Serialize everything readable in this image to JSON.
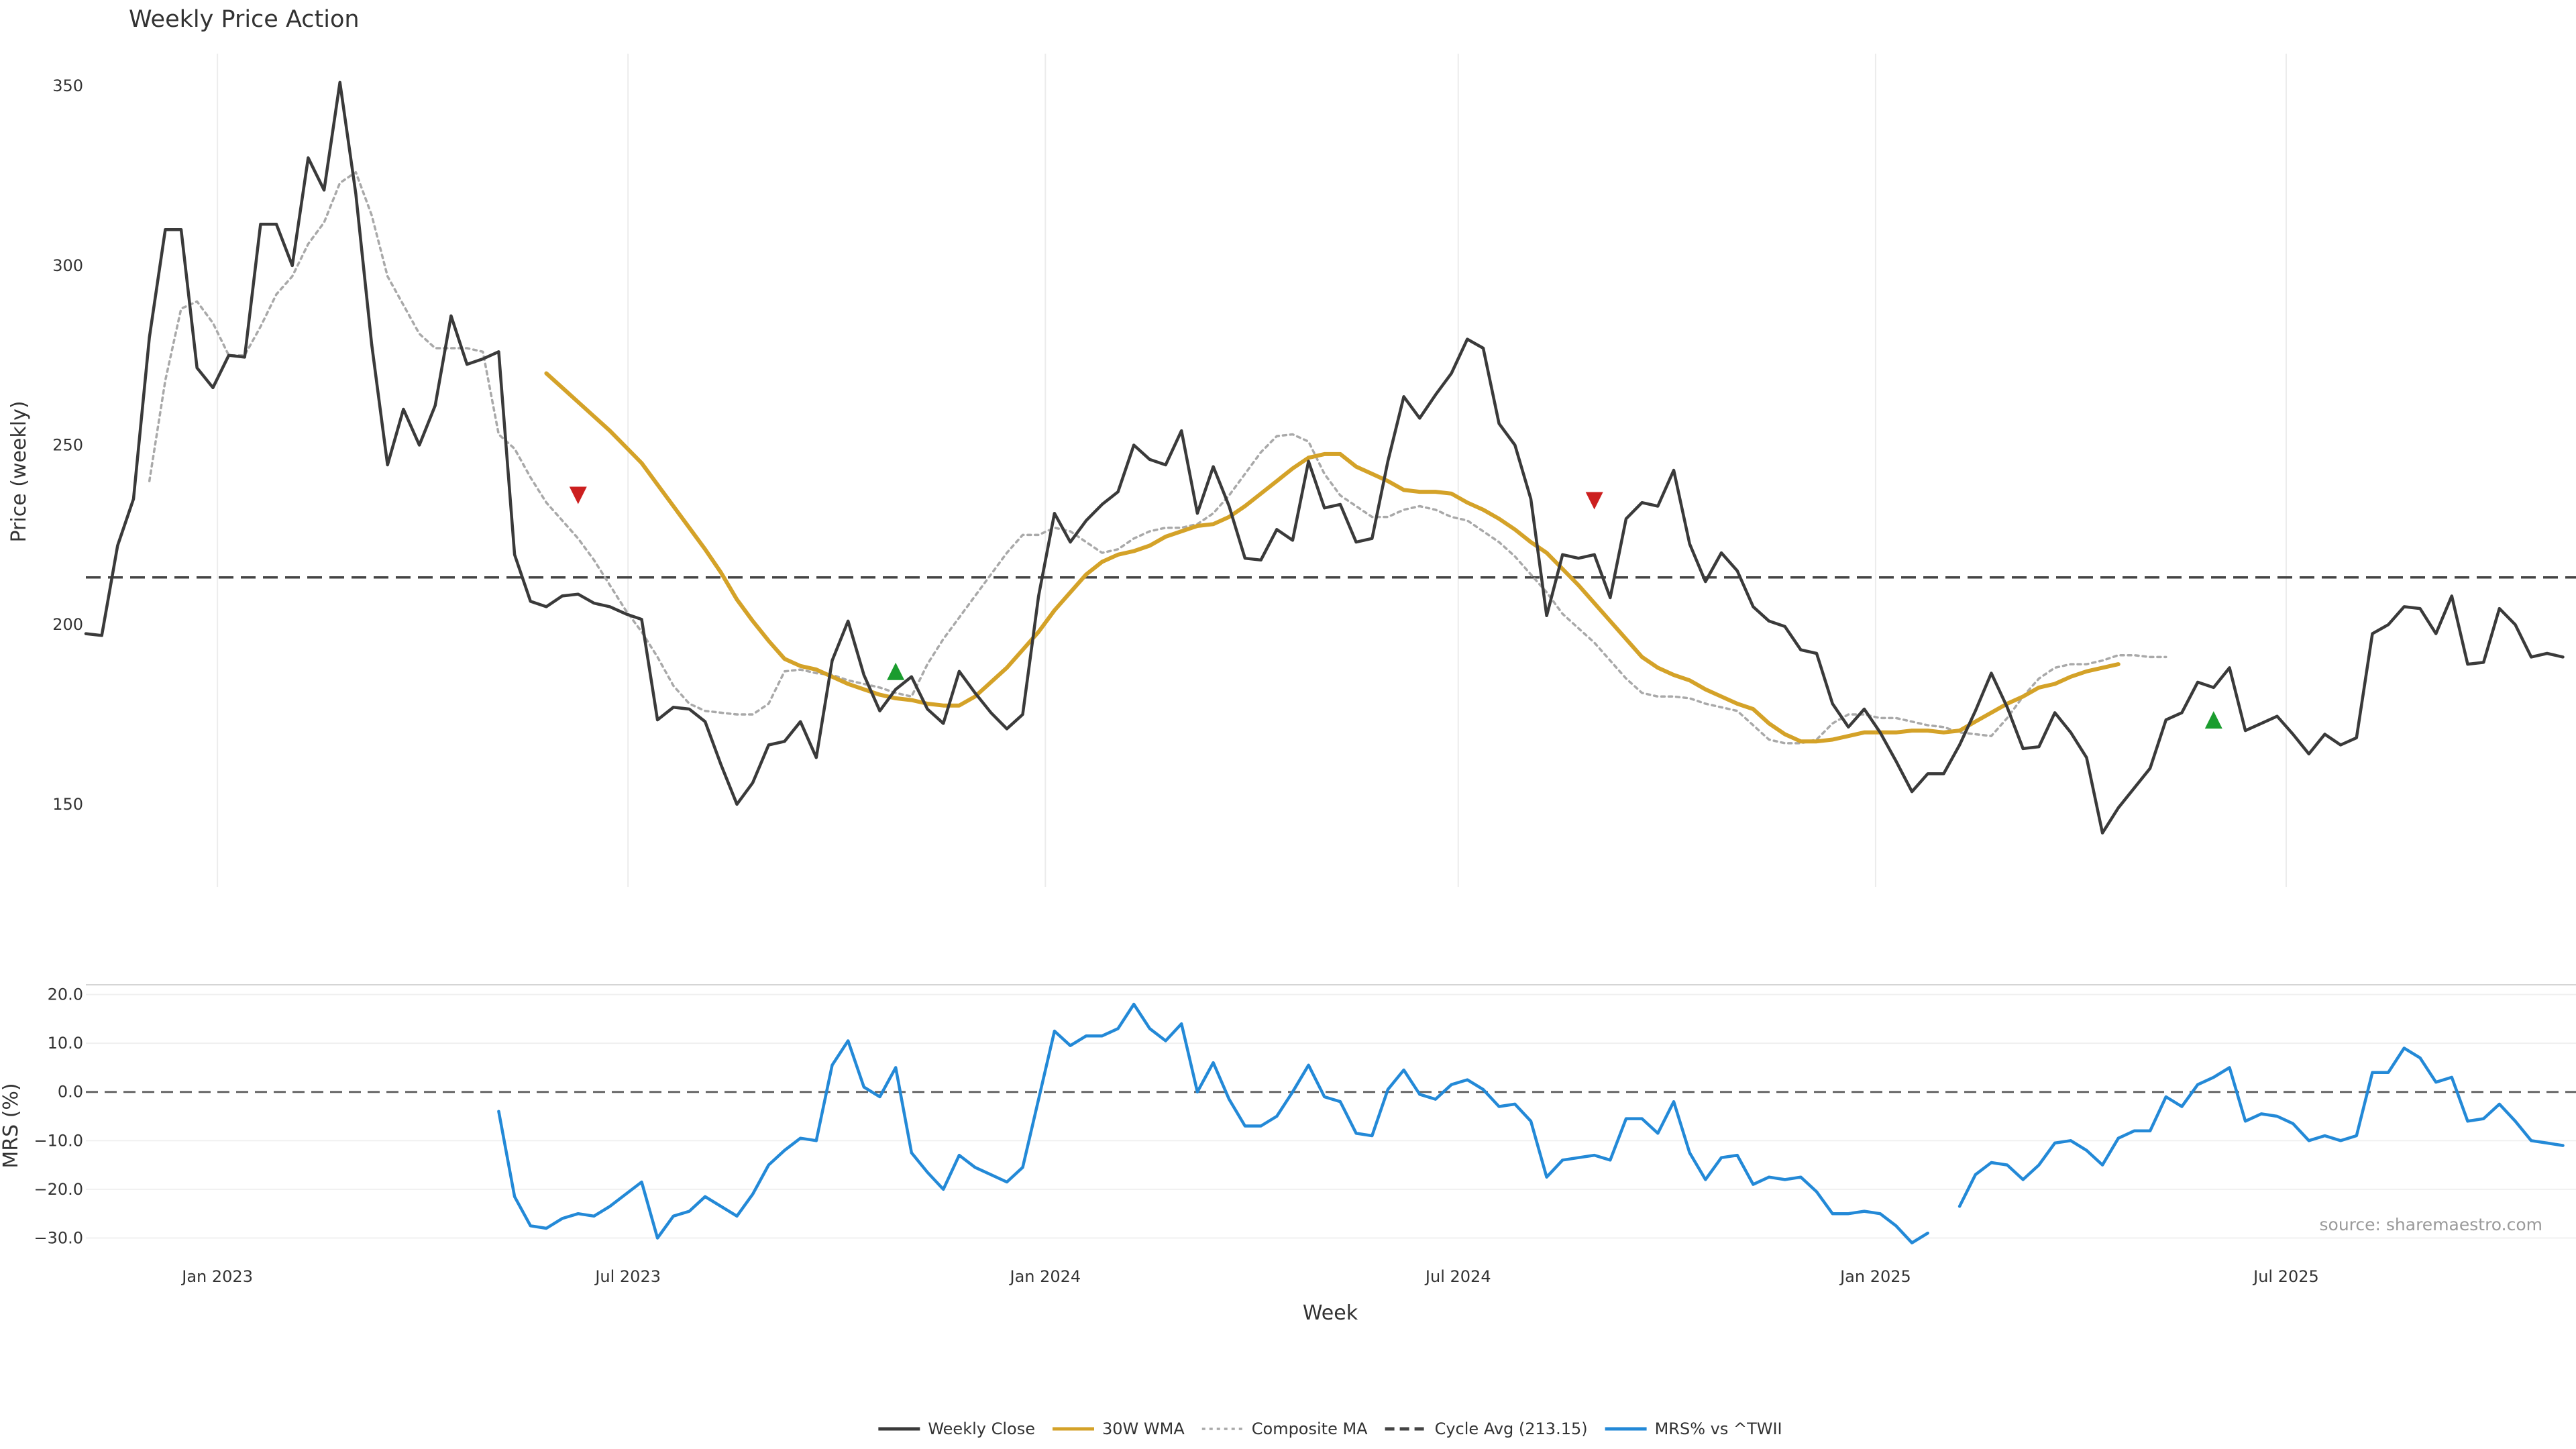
{
  "chart_data": [
    {
      "type": "line",
      "title": "Weekly Price Action",
      "ylabel": "Price (weekly)",
      "ylim": [
        127,
        359
      ],
      "yticks": [
        "150",
        "200",
        "250",
        "300",
        "350"
      ],
      "grid": "vertical gridlines at month ticks",
      "reference_line": {
        "name": "Cycle Avg (213.15)",
        "value": 213.15,
        "style": "dashed",
        "color": "#444444"
      },
      "series": [
        {
          "name": "Weekly Close",
          "color": "#3a3a3a",
          "start_date": "2022-11-04",
          "values": [
            197.5,
            197,
            222,
            235,
            280,
            310,
            310,
            271.5,
            266,
            275,
            274.5,
            311.5,
            311.5,
            300,
            330,
            321,
            351,
            320,
            278,
            244.5,
            260,
            250,
            261,
            286,
            272.5,
            274,
            276,
            219.5,
            206.5,
            205,
            208,
            208.5,
            206,
            205,
            203,
            201.5,
            173.5,
            177,
            176.5,
            173,
            161,
            150,
            156,
            166.5,
            167.5,
            173,
            163,
            190,
            201,
            186,
            176,
            182,
            185.5,
            176.5,
            172.5,
            187,
            181,
            175.5,
            171,
            175,
            208,
            231,
            223,
            229,
            233.5,
            237,
            250,
            246,
            244.5,
            254,
            231,
            244,
            233,
            218.5,
            218,
            226.5,
            223.5,
            245.5,
            232.5,
            233.5,
            223,
            224,
            245.5,
            263.5,
            257.5,
            264,
            270,
            279.5,
            277,
            256,
            250,
            235,
            202.5,
            219.5,
            218.5,
            219.5,
            207.5,
            229.5,
            234,
            233,
            243,
            222.5,
            212,
            220,
            215,
            205,
            201,
            199.5,
            193,
            192,
            178,
            171.5,
            176.5,
            170,
            162,
            153.5,
            158.5,
            158.5,
            166.5,
            176,
            186.5,
            177,
            165.5,
            166,
            175.5,
            170,
            163,
            142,
            149,
            154.5,
            160,
            173.5,
            175.5,
            184,
            182.5,
            188,
            170.5,
            172.5,
            174.5,
            169.5,
            164,
            169.5,
            166.5,
            168.5,
            197.5,
            200,
            205,
            204.5,
            197.5,
            208,
            189,
            189.5,
            204.5,
            200,
            191,
            192,
            191
          ]
        },
        {
          "name": "30W WMA",
          "color": "#d4a228",
          "start_date": "2023-05-26",
          "values": [
            270,
            266,
            262,
            258,
            254,
            249.5,
            245,
            239,
            233,
            227,
            221,
            214.5,
            207,
            201,
            195.5,
            190.5,
            188.5,
            187.5,
            185.5,
            183.5,
            182,
            180.5,
            179.5,
            179,
            178,
            177.5,
            177.5,
            180,
            184,
            188,
            193,
            198,
            204,
            209,
            214,
            217.5,
            219.5,
            220.5,
            222,
            224.5,
            226,
            227.5,
            228,
            230,
            233,
            236.5,
            240,
            243.5,
            246.5,
            247.5,
            247.5,
            244,
            242,
            240,
            237.5,
            237,
            237,
            236.5,
            234,
            232,
            229.5,
            226.5,
            223,
            220,
            215.5,
            211,
            206,
            201,
            196,
            191,
            188,
            186,
            184.5,
            182,
            180,
            178,
            176.5,
            172.5,
            169.5,
            167.5,
            167.5,
            168,
            169,
            170,
            170,
            170,
            170.5,
            170.5,
            170,
            170.5,
            173,
            175.5,
            178,
            180,
            182.5,
            183.5,
            185.5,
            187,
            188,
            189
          ]
        },
        {
          "name": "Composite MA",
          "color": "#a9a9a9",
          "start_date": "2022-12-02",
          "values": [
            240,
            268,
            288,
            290,
            284,
            275,
            275,
            283,
            292,
            297,
            306,
            312,
            323,
            326,
            314,
            297,
            289,
            281,
            277,
            277,
            277,
            276,
            253,
            249,
            241,
            234,
            229,
            224,
            218,
            211,
            204,
            198,
            191,
            183,
            178,
            176,
            175.5,
            175,
            175,
            178,
            187,
            187.5,
            186.5,
            186,
            184.5,
            183.5,
            182.5,
            181,
            180,
            189,
            196,
            202,
            208,
            214,
            220,
            225,
            225,
            227,
            226,
            223,
            220,
            221,
            224,
            226,
            227,
            227,
            228,
            231,
            236,
            242,
            248,
            252.5,
            253,
            251,
            242,
            236,
            233,
            230,
            230,
            232,
            233,
            232,
            230,
            229,
            226,
            223,
            219,
            214,
            209,
            203,
            199,
            195,
            190,
            185,
            181,
            180,
            180,
            179.5,
            178,
            177,
            176,
            172,
            168,
            167,
            167,
            168,
            172.5,
            175,
            175,
            174,
            174,
            173,
            172,
            171.5,
            170,
            169.5,
            169,
            174,
            180,
            185,
            188,
            189,
            189,
            190,
            191.5,
            191.5,
            191,
            191
          ]
        }
      ],
      "markers": [
        {
          "type": "sell",
          "shape": "down-triangle",
          "color": "#cc1f1f",
          "date": "2023-06-09",
          "value": 236
        },
        {
          "type": "buy",
          "shape": "up-triangle",
          "color": "#1a9c2e",
          "date": "2023-10-27",
          "value": 187
        },
        {
          "type": "sell",
          "shape": "down-triangle",
          "color": "#cc1f1f",
          "date": "2024-08-30",
          "value": 234.5
        },
        {
          "type": "buy",
          "shape": "up-triangle",
          "color": "#1a9c2e",
          "date": "2025-05-30",
          "value": 173.5
        }
      ]
    },
    {
      "type": "line",
      "ylabel": "MRS (%)",
      "ylim": [
        -32,
        22
      ],
      "yticks": [
        "20.0",
        "10.0",
        "0.0",
        "−10.0",
        "−20.0",
        "−30.0"
      ],
      "xlabel": "Week",
      "xticks": [
        {
          "label": "Jan 2023",
          "date": "2023-01-01"
        },
        {
          "label": "Jul 2023",
          "date": "2023-07-01"
        },
        {
          "label": "Jan 2024",
          "date": "2024-01-01"
        },
        {
          "label": "Jul 2024",
          "date": "2024-07-01"
        },
        {
          "label": "Jan 2025",
          "date": "2025-01-01"
        },
        {
          "label": "Jul 2025",
          "date": "2025-07-01"
        }
      ],
      "reference_line": {
        "value": 0,
        "style": "dashed",
        "color": "#666666"
      },
      "series": [
        {
          "name": "MRS% vs ^TWII",
          "color": "#2389d7",
          "segments": [
            {
              "start_date": "2023-05-05",
              "values": [
                -4,
                -21.5,
                -27.5,
                -28,
                -26,
                -25,
                -25.5,
                -23.5,
                -21,
                -18.5,
                -30,
                -25.5,
                -24.5,
                -21.5,
                -23.5,
                -25.5,
                -21,
                -15,
                -12,
                -9.5,
                -10,
                5.5,
                10.5,
                1,
                -1,
                5,
                -12.5,
                -16.5,
                -20,
                -13,
                -15.5,
                -17,
                -18.5,
                -15.5,
                -1.5,
                12.5,
                9.5,
                11.5,
                11.5,
                13,
                18,
                13,
                10.5,
                14,
                0,
                6,
                -1.5,
                -7,
                -7,
                -5,
                0,
                5.5,
                -1,
                -2,
                -8.5,
                -9,
                0.5,
                4.5,
                -0.5,
                -1.5,
                1.5,
                2.5,
                0.5,
                -3,
                -2.5,
                -6,
                -17.5,
                -14,
                -13.5,
                -13,
                -14,
                -5.5,
                -5.5,
                -8.5,
                -2,
                -12.5,
                -18,
                -13.5,
                -13,
                -19,
                -17.5,
                -18,
                -17.5,
                -20.5,
                -25,
                -25,
                -24.5,
                -25,
                -27.5,
                -31,
                -29
              ]
            },
            {
              "start_date": "2025-02-07",
              "values": [
                -23.5,
                -17,
                -14.5,
                -15,
                -18,
                -15,
                -10.5,
                -10,
                -12,
                -15,
                -9.5,
                -8,
                -8,
                -1,
                -3,
                1.5,
                3,
                5,
                -6,
                -4.5,
                -5,
                -6.5,
                -10,
                -9,
                -10,
                -9,
                4,
                4,
                9,
                7,
                2,
                3,
                -6,
                -5.5,
                -2.5,
                -6,
                -10,
                -10.5,
                -11
              ]
            }
          ]
        }
      ],
      "annotation": "source: sharemaestro.com"
    }
  ],
  "legend": {
    "placement": "bottom-center",
    "items": [
      {
        "label": "Weekly Close",
        "color": "#3a3a3a",
        "style": "solid"
      },
      {
        "label": "30W WMA",
        "color": "#d4a228",
        "style": "solid"
      },
      {
        "label": "Composite MA",
        "color": "#a9a9a9",
        "style": "dotted"
      },
      {
        "label": "Cycle Avg (213.15)",
        "color": "#444444",
        "style": "dashed"
      },
      {
        "label": "MRS% vs ^TWII",
        "color": "#2389d7",
        "style": "solid"
      }
    ]
  }
}
